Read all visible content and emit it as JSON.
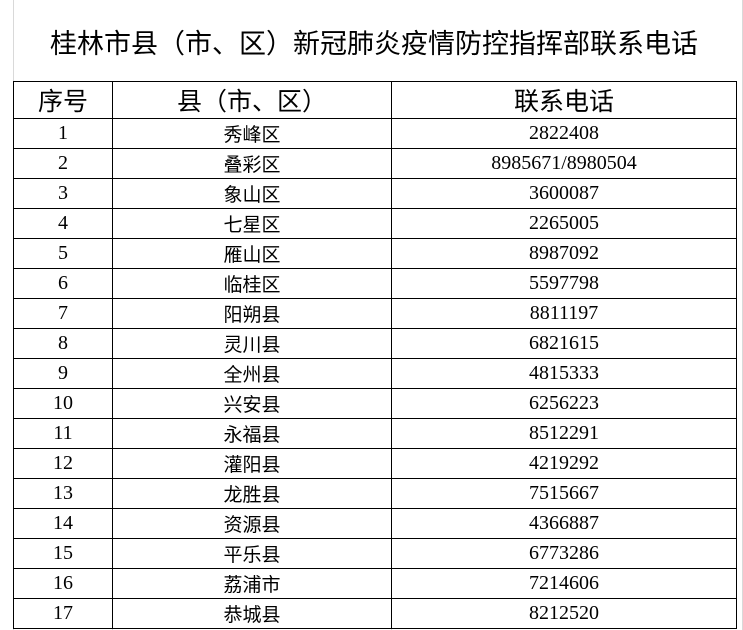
{
  "title": "桂林市县（市、区）新冠肺炎疫情防控指挥部联系电话",
  "columns": [
    "序号",
    "县（市、区）",
    "联系电话"
  ],
  "rows": [
    {
      "no": "1",
      "county": "秀峰区",
      "phone": "2822408"
    },
    {
      "no": "2",
      "county": "叠彩区",
      "phone": "8985671/8980504"
    },
    {
      "no": "3",
      "county": "象山区",
      "phone": "3600087"
    },
    {
      "no": "4",
      "county": "七星区",
      "phone": "2265005"
    },
    {
      "no": "5",
      "county": "雁山区",
      "phone": "8987092"
    },
    {
      "no": "6",
      "county": "临桂区",
      "phone": "5597798"
    },
    {
      "no": "7",
      "county": "阳朔县",
      "phone": "8811197"
    },
    {
      "no": "8",
      "county": "灵川县",
      "phone": "6821615"
    },
    {
      "no": "9",
      "county": "全州县",
      "phone": "4815333"
    },
    {
      "no": "10",
      "county": "兴安县",
      "phone": "6256223"
    },
    {
      "no": "11",
      "county": "永福县",
      "phone": "8512291"
    },
    {
      "no": "12",
      "county": "灌阳县",
      "phone": "4219292"
    },
    {
      "no": "13",
      "county": "龙胜县",
      "phone": "7515667"
    },
    {
      "no": "14",
      "county": "资源县",
      "phone": "4366887"
    },
    {
      "no": "15",
      "county": "平乐县",
      "phone": "6773286"
    },
    {
      "no": "16",
      "county": "荔浦市",
      "phone": "7214606"
    },
    {
      "no": "17",
      "county": "恭城县",
      "phone": "8212520"
    }
  ]
}
